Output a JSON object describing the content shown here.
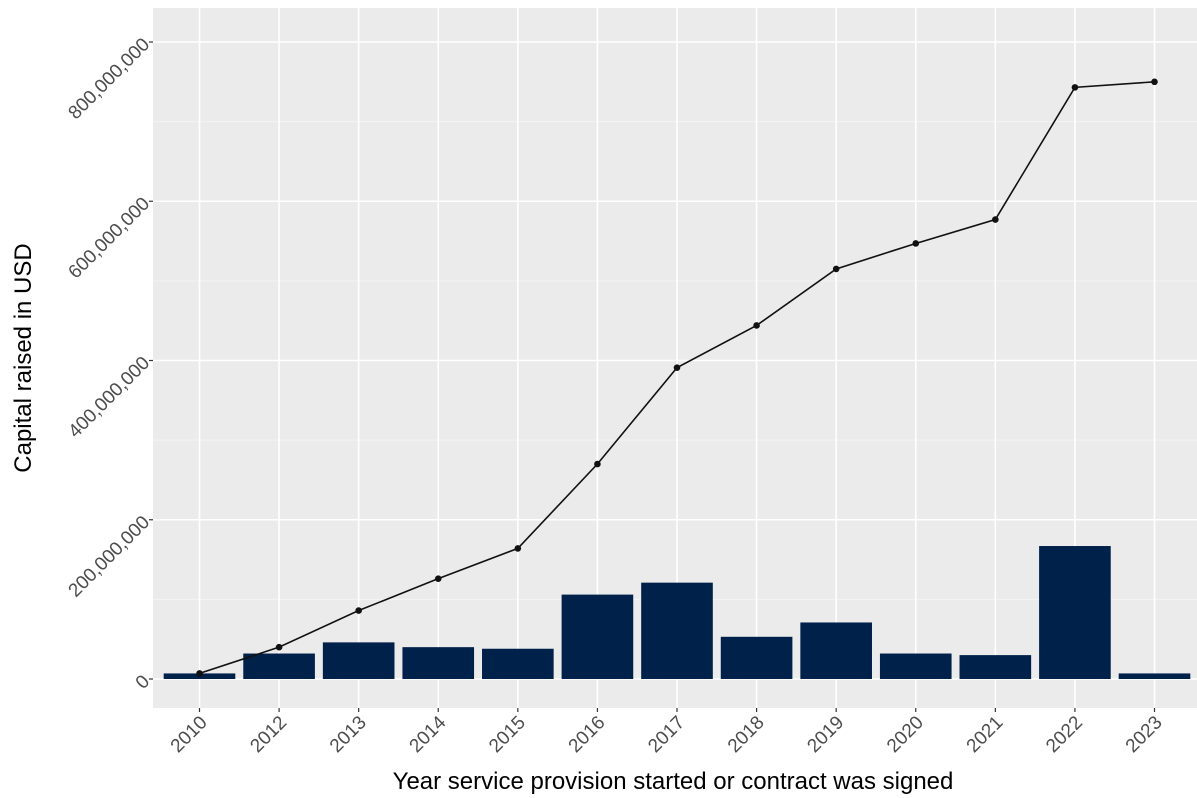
{
  "chart_data": {
    "type": "bar",
    "xlabel": "Year service provision started or contract was signed",
    "ylabel": "Capital raised in USD",
    "categories": [
      "2010",
      "2012",
      "2013",
      "2014",
      "2015",
      "2016",
      "2017",
      "2018",
      "2019",
      "2020",
      "2021",
      "2022",
      "2023"
    ],
    "ylim": [
      -35000000,
      840000000
    ],
    "y_ticks": [
      0,
      200000000,
      400000000,
      600000000,
      800000000
    ],
    "y_tick_labels": [
      "0",
      "200,000,000",
      "400,000,000",
      "600,000,000",
      "800,000,000"
    ],
    "grid": true,
    "series": [
      {
        "type": "bar",
        "color": "#00214a",
        "values": [
          7000000,
          32000000,
          46000000,
          40000000,
          38000000,
          106000000,
          121000000,
          53000000,
          71000000,
          32000000,
          30000000,
          167000000,
          7000000
        ]
      },
      {
        "type": "line",
        "color": "#111111",
        "values": [
          7000000,
          40000000,
          86000000,
          126000000,
          164000000,
          270000000,
          391000000,
          444000000,
          515000000,
          547000000,
          577000000,
          743000000,
          750000000
        ]
      }
    ],
    "colors": {
      "panel_background": "#ebebeb",
      "grid_major": "#ffffff",
      "grid_minor": "#f4f4f4",
      "tick_text": "#4d4d4d",
      "axis_title": "#000000"
    }
  }
}
